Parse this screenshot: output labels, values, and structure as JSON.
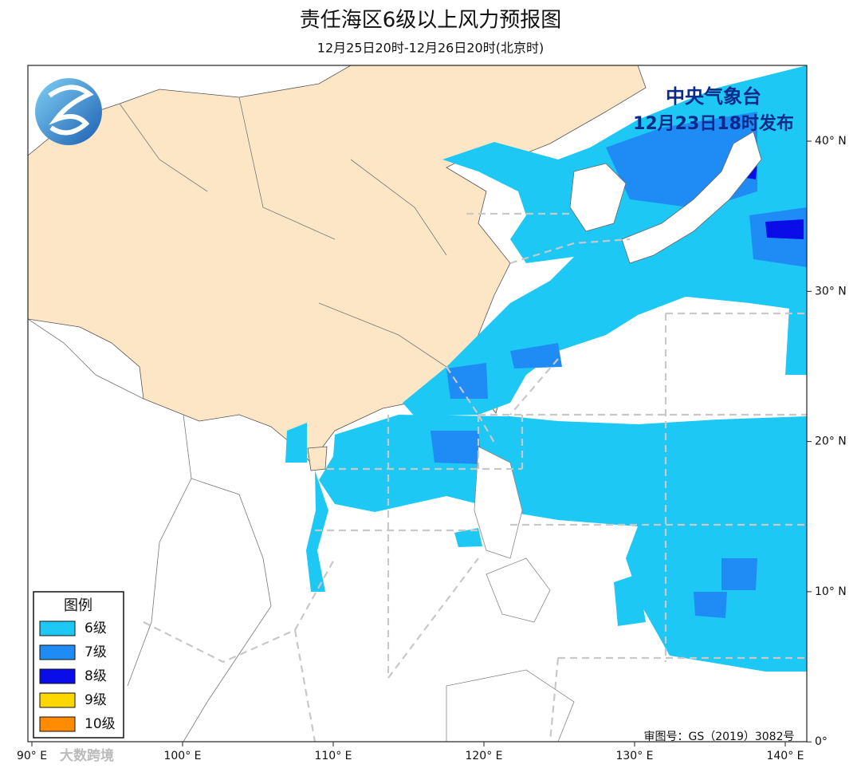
{
  "header": {
    "title": "责任海区6级以上风力预报图",
    "subtitle": "12月25日20时-12月26日20时(北京时)"
  },
  "map": {
    "agency": "中央气象台",
    "issued": "12月23日18时发布",
    "lon_labels": [
      "90° E",
      "100° E",
      "110° E",
      "120° E",
      "130° E",
      "140° E"
    ],
    "lat_labels": [
      "40° N",
      "30° N",
      "20° N",
      "10° N",
      "0°"
    ],
    "review_number": "审图号：GS（2019）3082号",
    "legend": {
      "title": "图例",
      "items": [
        {
          "label": "6级",
          "color": "#1ec8f5"
        },
        {
          "label": "7级",
          "color": "#1f8cf5"
        },
        {
          "label": "8级",
          "color": "#0b0de8"
        },
        {
          "label": "9级",
          "color": "#ffd700"
        },
        {
          "label": "10级",
          "color": "#ff8c00"
        }
      ]
    }
  },
  "watermark": "大数跨境"
}
